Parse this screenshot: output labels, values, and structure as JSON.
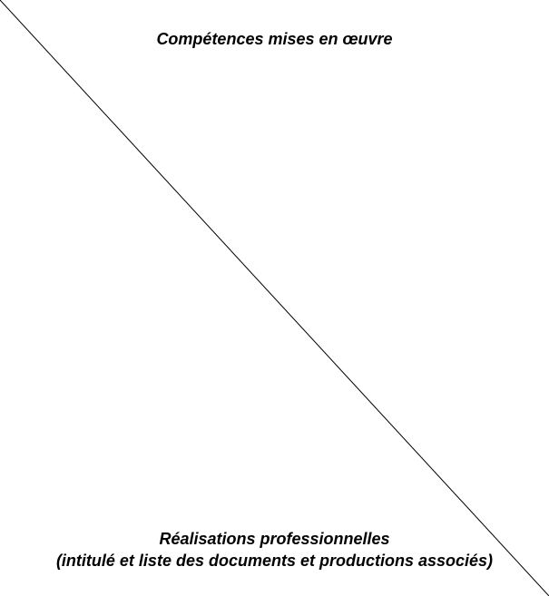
{
  "table_header_cell": {
    "top_label": "Compétences mises en œuvre",
    "bottom_label_line1": "Réalisations professionnelles",
    "bottom_label_line2": "(intitulé et liste des documents et productions associés)",
    "line_color": "#000000"
  }
}
